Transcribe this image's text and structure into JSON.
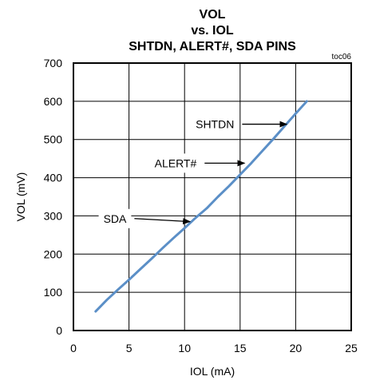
{
  "chart_data": {
    "type": "line",
    "title_lines": [
      "VOL",
      "vs. IOL",
      "SHTDN, ALERT#, SDA PINS"
    ],
    "figure_code": "toc06",
    "xlabel": "IOL (mA)",
    "ylabel": "VOL (mV)",
    "xlim": [
      0,
      25
    ],
    "ylim": [
      0,
      700
    ],
    "xticks": [
      0,
      5,
      10,
      15,
      20,
      25
    ],
    "yticks": [
      0,
      100,
      200,
      300,
      400,
      500,
      600,
      700
    ],
    "grid": true,
    "series_color": "#5b8fc7",
    "series": [
      {
        "x": [
          2,
          3,
          4,
          5,
          6,
          7,
          8,
          9,
          10,
          11,
          12,
          13,
          14,
          15,
          16,
          17,
          18,
          19,
          20,
          21
        ],
        "y": [
          50,
          80,
          107,
          133,
          160,
          187,
          215,
          242,
          268,
          295,
          320,
          350,
          378,
          408,
          438,
          470,
          502,
          535,
          568,
          600
        ]
      }
    ],
    "annotations": [
      {
        "text": "SHTDN",
        "x": 11,
        "y": 540,
        "arrow_to": [
          19.2,
          540
        ]
      },
      {
        "text": "ALERT#",
        "x": 7.3,
        "y": 438,
        "arrow_to": [
          15.4,
          438
        ]
      },
      {
        "text": "SDA",
        "x": 2.7,
        "y": 293,
        "arrow_to": [
          10.5,
          285
        ]
      }
    ]
  }
}
